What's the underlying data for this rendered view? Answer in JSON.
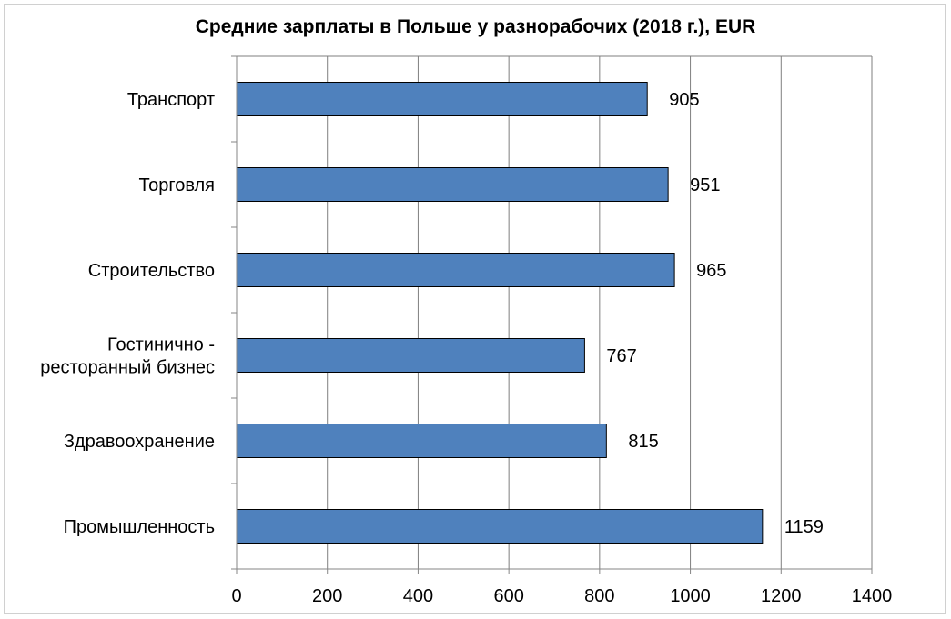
{
  "chart_data": {
    "type": "bar",
    "orientation": "horizontal",
    "title": "Средние зарплаты в Польше у разнорабочих (2018 г.), EUR",
    "categories": [
      [
        "Транспорт"
      ],
      [
        "Торговля"
      ],
      [
        "Строительство"
      ],
      [
        "Гостинично -",
        "ресторанный  бизнес"
      ],
      [
        "Здравоохранение"
      ],
      [
        "Промышленность"
      ]
    ],
    "values": [
      905,
      951,
      965,
      767,
      815,
      1159
    ],
    "value_labels": [
      "905",
      "951",
      "965",
      "767",
      "815",
      "1159"
    ],
    "xlim": [
      0,
      1400
    ],
    "x_ticks": [
      0,
      200,
      400,
      600,
      800,
      1000,
      1200,
      1400
    ],
    "x_tick_labels": [
      "0",
      "200",
      "400",
      "600",
      "800",
      "1000",
      "1200",
      "1400"
    ],
    "grid": "vertical",
    "legend": "none",
    "bar_color": "#4f81bd",
    "bar_border_color": "#000000",
    "grid_color": "#7f7f7f"
  }
}
